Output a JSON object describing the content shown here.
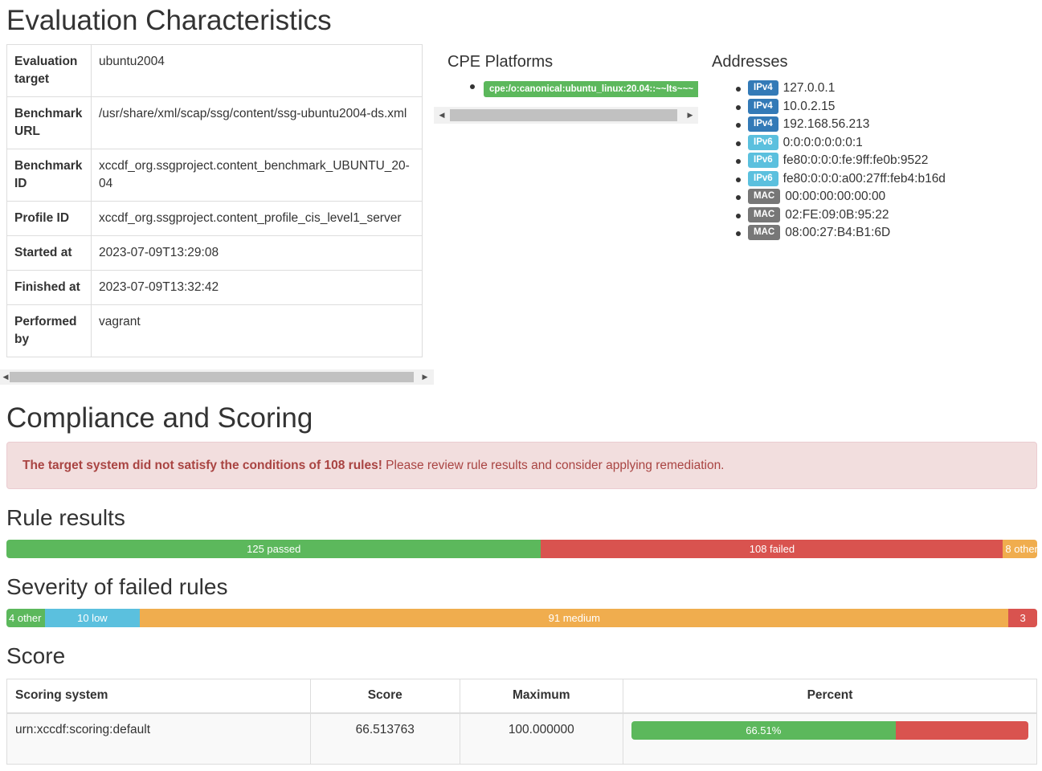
{
  "evaluation": {
    "title": "Evaluation Characteristics",
    "rows": [
      {
        "key": "Evaluation target",
        "value": "ubuntu2004"
      },
      {
        "key": "Benchmark URL",
        "value": "/usr/share/xml/scap/ssg/content/ssg-ubuntu2004-ds.xml"
      },
      {
        "key": "Benchmark ID",
        "value": "xccdf_org.ssgproject.content_benchmark_UBUNTU_20-04"
      },
      {
        "key": "Profile ID",
        "value": "xccdf_org.ssgproject.content_profile_cis_level1_server"
      },
      {
        "key": "Started at",
        "value": "2023-07-09T13:29:08"
      },
      {
        "key": "Finished at",
        "value": "2023-07-09T13:32:42"
      },
      {
        "key": "Performed by",
        "value": "vagrant"
      }
    ]
  },
  "cpe": {
    "title": "CPE Platforms",
    "items": [
      "cpe:/o:canonical:ubuntu_linux:20.04::~~lts~~~"
    ]
  },
  "addresses": {
    "title": "Addresses",
    "items": [
      {
        "type": "IPv4",
        "value": "127.0.0.1"
      },
      {
        "type": "IPv4",
        "value": "10.0.2.15"
      },
      {
        "type": "IPv4",
        "value": "192.168.56.213"
      },
      {
        "type": "IPv6",
        "value": "0:0:0:0:0:0:0:1"
      },
      {
        "type": "IPv6",
        "value": "fe80:0:0:0:fe:9ff:fe0b:9522"
      },
      {
        "type": "IPv6",
        "value": "fe80:0:0:0:a00:27ff:feb4:b16d"
      },
      {
        "type": "MAC",
        "value": "00:00:00:00:00:00"
      },
      {
        "type": "MAC",
        "value": "02:FE:09:0B:95:22"
      },
      {
        "type": "MAC",
        "value": "08:00:27:B4:B1:6D"
      }
    ]
  },
  "compliance": {
    "title": "Compliance and Scoring",
    "alert_strong": "The target system did not satisfy the conditions of 108 rules!",
    "alert_text": " Please review rule results and consider applying remediation."
  },
  "rule_results": {
    "title": "Rule results",
    "segments": [
      {
        "label": "125 passed",
        "count": 125,
        "color": "#5cb85c"
      },
      {
        "label": "108 failed",
        "count": 108,
        "color": "#d9534f"
      },
      {
        "label": "8 other",
        "count": 8,
        "color": "#f0ad4e"
      }
    ]
  },
  "severity": {
    "title": "Severity of failed rules",
    "segments": [
      {
        "label": "4 other",
        "count": 4,
        "color": "#5cb85c"
      },
      {
        "label": "10 low",
        "count": 10,
        "color": "#5bc0de"
      },
      {
        "label": "91 medium",
        "count": 91,
        "color": "#f0ad4e"
      },
      {
        "label": "3",
        "count": 3,
        "color": "#d9534f"
      }
    ]
  },
  "score": {
    "title": "Score",
    "headers": {
      "system": "Scoring system",
      "score": "Score",
      "maximum": "Maximum",
      "percent": "Percent"
    },
    "rows": [
      {
        "system": "urn:xccdf:scoring:default",
        "score": "66.513763",
        "maximum": "100.000000",
        "percent_label": "66.51%",
        "percent": 66.51
      }
    ]
  }
}
